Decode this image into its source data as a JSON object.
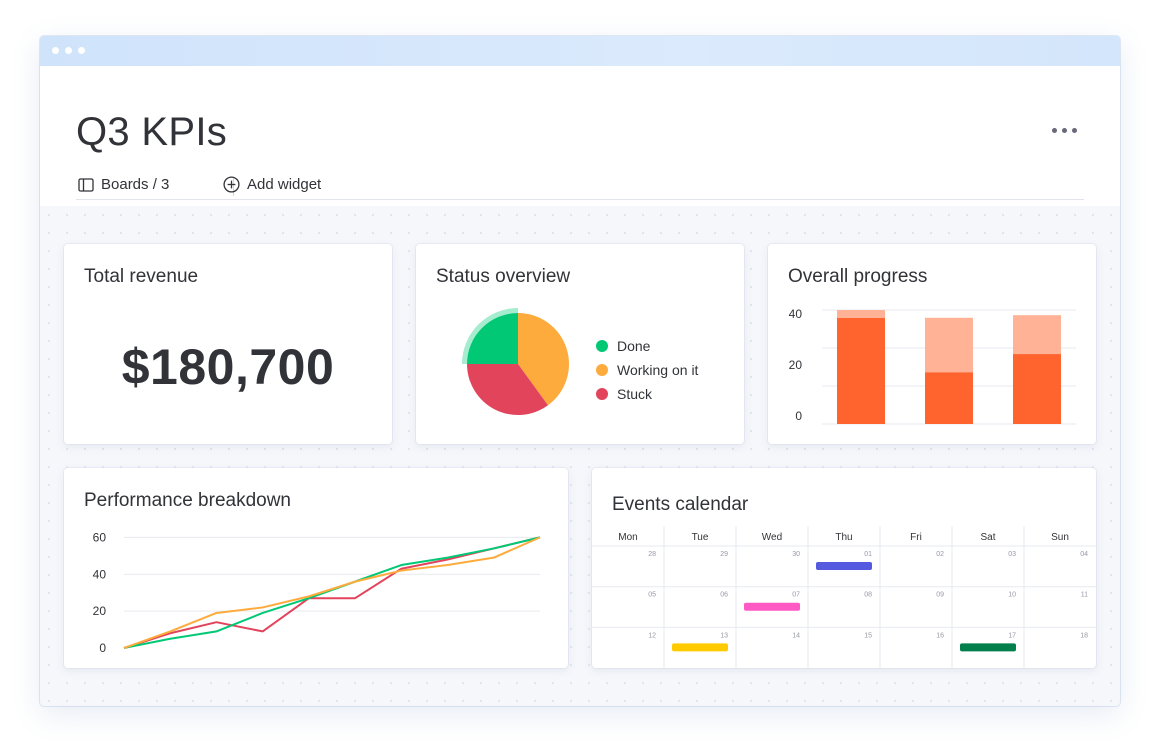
{
  "header": {
    "title": "Q3 KPIs",
    "breadcrumb": {
      "boards_label": "Boards / 3",
      "add_widget_label": "Add widget"
    }
  },
  "icons": {
    "board": "board-icon",
    "add": "plus-circle-icon",
    "more": "more-horizontal-icon"
  },
  "widgets": {
    "revenue": {
      "title": "Total revenue",
      "value": "$180,700"
    },
    "status": {
      "title": "Status overview"
    },
    "progress": {
      "title": "Overall progress"
    },
    "performance": {
      "title": "Performance breakdown"
    },
    "calendar": {
      "title": "Events calendar"
    }
  },
  "chart_data": [
    {
      "type": "pie",
      "title": "Status overview",
      "labels": [
        "Done",
        "Working on it",
        "Stuck"
      ],
      "values": [
        25,
        40,
        35
      ],
      "colors": [
        "#00c875",
        "#fdab3d",
        "#e2445c"
      ],
      "legend": "right"
    },
    {
      "type": "bar",
      "title": "Overall progress",
      "categories": [
        "",
        "",
        ""
      ],
      "series": [
        {
          "values": [
            41,
            20,
            27
          ],
          "color": "#ff642e"
        },
        {
          "values": [
            3,
            21,
            15
          ],
          "color": "#ffb296"
        }
      ],
      "stacked": true,
      "yticks": [
        0,
        20,
        40
      ],
      "ylim": [
        0,
        44
      ],
      "grid": true
    },
    {
      "type": "line",
      "title": "Performance breakdown",
      "x": [
        0,
        1,
        2,
        3,
        4,
        5,
        6,
        7,
        8,
        9,
        10,
        11,
        12
      ],
      "series": [
        {
          "values": [
            0,
            8,
            14,
            9,
            27,
            27,
            43,
            48,
            54,
            60
          ],
          "x": [
            0,
            1,
            2,
            3,
            4,
            5,
            6,
            7,
            8,
            9
          ],
          "color": "#e2445c"
        },
        {
          "values": [
            0,
            5,
            9,
            19,
            27,
            36,
            45,
            49,
            54,
            60
          ],
          "x": [
            0,
            1,
            2,
            3,
            4,
            5,
            6,
            7,
            8,
            9
          ],
          "color": "#00c875"
        },
        {
          "values": [
            0,
            9,
            19,
            22,
            28,
            36,
            42,
            45,
            49,
            60
          ],
          "x": [
            0,
            1,
            2,
            3,
            4,
            5,
            6,
            7,
            8,
            9
          ],
          "color": "#fdab3d"
        }
      ],
      "yticks": [
        0,
        20,
        40,
        60
      ],
      "ylim": [
        0,
        64
      ],
      "grid": true
    }
  ],
  "calendar": {
    "weekdays": [
      "Mon",
      "Tue",
      "Wed",
      "Thu",
      "Fri",
      "Sat",
      "Sun"
    ],
    "days": [
      "28",
      "29",
      "30",
      "01",
      "02",
      "03",
      "04",
      "05",
      "06",
      "07",
      "08",
      "09",
      "10",
      "11",
      "12",
      "13",
      "14",
      "15",
      "16",
      "17",
      "18"
    ],
    "events": [
      {
        "row": 0,
        "col": 3,
        "color": "#5559df"
      },
      {
        "row": 1,
        "col": 2,
        "color": "#ff5ac4"
      },
      {
        "row": 2,
        "col": 1,
        "color": "#ffcb00"
      },
      {
        "row": 2,
        "col": 5,
        "color": "#037f4c"
      }
    ]
  }
}
